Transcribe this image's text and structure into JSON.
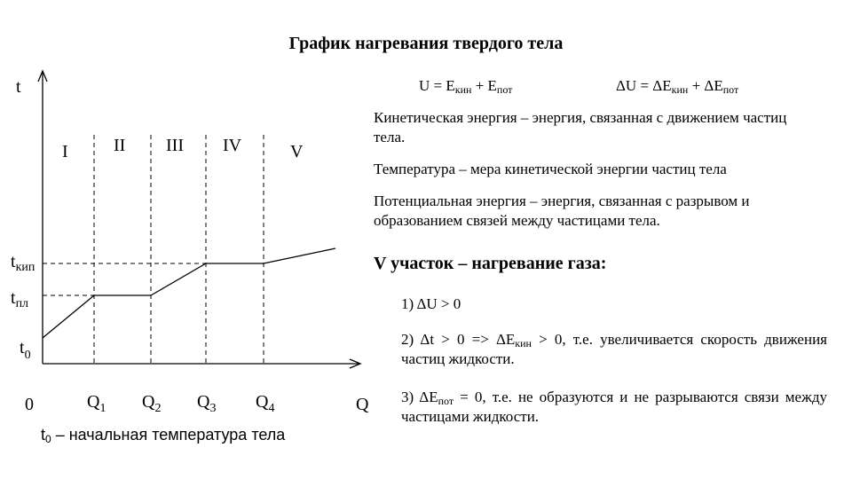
{
  "title": "График нагревания твердого тела",
  "formulas": {
    "energy_sum": {
      "pre": "U = E",
      "sub1": "кин",
      "mid": " + E",
      "sub2": "пот"
    },
    "energy_delta": {
      "pre": "ΔU = ΔE",
      "sub1": "кин",
      "mid": " + ΔE",
      "sub2": "пот"
    }
  },
  "definitions": [
    "Кинетическая энергия – энергия, связанная с движением частиц тела.",
    "Температура – мера кинетической энергии частиц тела",
    "Потенциальная энергия – энергия, связанная с разрывом и образованием связей между частицами тела."
  ],
  "section_heading": "V участок – нагревание газа:",
  "items": {
    "i1": "1) ΔU > 0",
    "i2": {
      "pre": "2) Δt > 0 => ΔE",
      "sub": "кин",
      "post": " > 0, т.е. увеличивается скорость движения частиц жидкости."
    },
    "i3": {
      "pre": "3) ΔE",
      "sub": "пот",
      "post": " = 0, т.е. не образуются и не разрываются связи между частицами жидкости."
    }
  },
  "caption": {
    "pre": "t",
    "sub": "0",
    "post": " – начальная температура тела"
  },
  "chart_data": {
    "type": "line",
    "ylabel": "t",
    "xlabel": "Q",
    "origin_label": "0",
    "y_ticks": [
      {
        "base": "t",
        "sub": "кип"
      },
      {
        "base": "t",
        "sub": "пл"
      },
      {
        "base": "t",
        "sub": "0"
      }
    ],
    "x_ticks": [
      {
        "base": "Q",
        "sub": "1"
      },
      {
        "base": "Q",
        "sub": "2"
      },
      {
        "base": "Q",
        "sub": "3"
      },
      {
        "base": "Q",
        "sub": "4"
      }
    ],
    "regions": [
      "I",
      "II",
      "III",
      "IV",
      "V"
    ],
    "grid": false,
    "legend": "none"
  }
}
